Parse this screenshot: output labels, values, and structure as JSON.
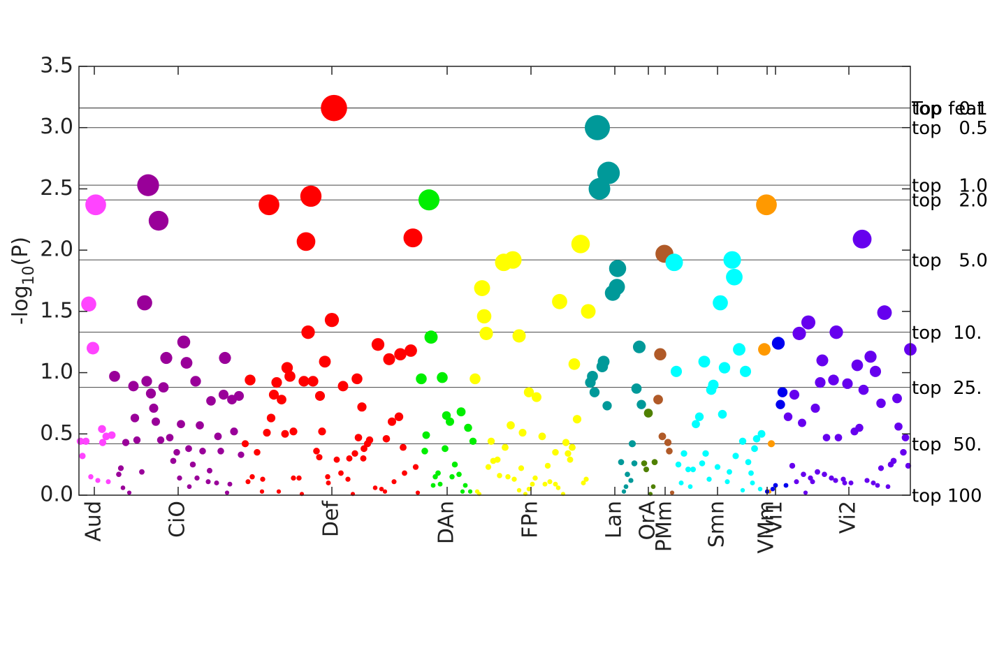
{
  "chart_data": {
    "type": "scatter",
    "ylabel": {
      "prefix": "-log",
      "sub": "10",
      "suffix": "(P)"
    },
    "ylim": [
      0,
      3.5
    ],
    "yticks": [
      {
        "value": 0,
        "label": "0.0"
      },
      {
        "value": 0.5,
        "label": "0.5"
      },
      {
        "value": 1,
        "label": "1.0"
      },
      {
        "value": 1.5,
        "label": "1.5"
      },
      {
        "value": 2,
        "label": "2.0"
      },
      {
        "value": 2.5,
        "label": "2.5"
      },
      {
        "value": 3,
        "label": "3.0"
      },
      {
        "value": 3.5,
        "label": "3.5"
      }
    ],
    "xlim": [
      113,
      1303
    ],
    "xticks": [
      {
        "value": 135,
        "label": "Aud"
      },
      {
        "value": 255,
        "label": "CiO"
      },
      {
        "value": 475,
        "label": "Def"
      },
      {
        "value": 640,
        "label": "DAn"
      },
      {
        "value": 760,
        "label": "FPn"
      },
      {
        "value": 880,
        "label": "Lan"
      },
      {
        "value": 928,
        "label": "OrA"
      },
      {
        "value": 952,
        "label": "PMm"
      },
      {
        "value": 1027,
        "label": "Smn"
      },
      {
        "value": 1098,
        "label": "VMm"
      },
      {
        "value": 1110,
        "label": "Vi1"
      },
      {
        "value": 1215,
        "label": "Vi2"
      }
    ],
    "thresholds": [
      {
        "value": 3.16,
        "label": "Top feat"
      },
      {
        "value": 3.16,
        "label": "top   0.1"
      },
      {
        "value": 3.0,
        "label": "top   0.5"
      },
      {
        "value": 2.53,
        "label": "top   1.0"
      },
      {
        "value": 2.41,
        "label": "top   2.0"
      },
      {
        "value": 1.92,
        "label": "top   5.0"
      },
      {
        "value": 1.33,
        "label": "top  10."
      },
      {
        "value": 0.88,
        "label": "top  25."
      },
      {
        "value": 0.42,
        "label": "top  50."
      },
      {
        "value": 0,
        "label": "top 100"
      }
    ],
    "series": [
      {
        "color": "#ff44ff",
        "x": [
          137,
          127,
          133,
          115,
          123,
          147,
          152,
          160,
          146,
          118,
          130,
          140,
          155
        ],
        "values": [
          2.37,
          1.56,
          1.2,
          0.44,
          0.44,
          0.43,
          0.48,
          0.49,
          0.54,
          0.32,
          0.15,
          0.12,
          0.11
        ]
      },
      {
        "color": "#990099",
        "x": [
          212,
          227,
          207,
          263,
          238,
          267,
          164,
          191,
          210,
          234,
          216,
          280,
          322,
          302,
          320,
          342,
          332,
          220,
          193,
          223,
          196,
          180,
          230,
          259,
          286,
          243,
          312,
          335,
          253,
          270,
          290,
          316,
          248,
          276,
          300,
          173,
          203,
          170,
          257,
          282,
          298,
          310,
          329,
          176,
          185,
          271,
          325,
          345
        ],
        "values": [
          2.53,
          2.24,
          1.57,
          1.25,
          1.12,
          1.08,
          0.97,
          0.89,
          0.93,
          0.88,
          0.83,
          0.93,
          1.12,
          0.77,
          0.82,
          0.81,
          0.78,
          0.71,
          0.63,
          0.6,
          0.45,
          0.43,
          0.45,
          0.58,
          0.57,
          0.47,
          0.48,
          0.52,
          0.35,
          0.38,
          0.36,
          0.36,
          0.28,
          0.25,
          0.2,
          0.22,
          0.19,
          0.17,
          0.14,
          0.14,
          0.11,
          0.1,
          0.09,
          0.06,
          0.02,
          0.07,
          0.02,
          0.33
        ]
      },
      {
        "color": "#ff0000",
        "x": [
          478,
          385,
          445,
          438,
          591,
          475,
          441,
          465,
          541,
          557,
          573,
          588,
          411,
          415,
          396,
          358,
          435,
          448,
          511,
          491,
          392,
          403,
          458,
          518,
          388,
          561,
          571,
          382,
          408,
          420,
          461,
          351,
          513,
          529,
          526,
          521,
          553,
          577,
          453,
          368,
          457,
          482,
          508,
          500,
          520,
          595,
          579,
          564,
          488,
          498,
          469,
          361,
          355,
          376,
          420,
          428,
          470,
          537,
          546,
          551,
          598,
          375,
          399,
          432,
          505
        ],
        "values": [
          3.16,
          2.37,
          2.44,
          2.07,
          2.1,
          1.43,
          1.33,
          1.09,
          1.23,
          1.11,
          1.15,
          1.18,
          1.04,
          0.97,
          0.92,
          0.94,
          0.93,
          0.93,
          0.95,
          0.89,
          0.82,
          0.78,
          0.81,
          0.72,
          0.63,
          0.6,
          0.64,
          0.51,
          0.5,
          0.52,
          0.52,
          0.42,
          0.47,
          0.45,
          0.42,
          0.38,
          0.46,
          0.39,
          0.36,
          0.35,
          0.31,
          0.29,
          0.34,
          0.3,
          0.3,
          0.23,
          0.18,
          0.11,
          0.18,
          0.13,
          0.15,
          0.15,
          0.11,
          0.13,
          0.14,
          0.14,
          0.1,
          0.06,
          0.05,
          0.03,
          0.02,
          0.03,
          0.03,
          0.01,
          0.01
        ]
      },
      {
        "color": "#00ee00",
        "x": [
          614,
          617,
          603,
          633,
          639,
          644,
          660,
          670,
          677,
          610,
          608,
          637,
          651,
          627,
          623,
          647,
          657,
          630,
          620,
          666,
          662,
          673
        ],
        "values": [
          2.41,
          1.29,
          0.95,
          0.96,
          0.65,
          0.6,
          0.68,
          0.55,
          0.44,
          0.49,
          0.36,
          0.38,
          0.25,
          0.18,
          0.15,
          0.15,
          0.17,
          0.09,
          0.08,
          0.08,
          0.03,
          0.03
        ]
      },
      {
        "color": "#ffff00",
        "x": [
          690,
          693,
          696,
          734,
          721,
          743,
          831,
          801,
          842,
          822,
          680,
          757,
          768,
          731,
          748,
          776,
          826,
          810,
          819,
          703,
          723,
          795,
          813,
          706,
          712,
          699,
          746,
          784,
          816,
          715,
          727,
          736,
          766,
          839,
          835,
          780,
          787,
          795,
          799,
          757,
          743,
          683,
          686,
          762,
          806,
          752
        ],
        "values": [
          1.69,
          1.46,
          1.32,
          1.92,
          1.9,
          1.3,
          2.05,
          1.58,
          1.5,
          1.07,
          0.95,
          0.84,
          0.8,
          0.57,
          0.51,
          0.48,
          0.62,
          0.43,
          0.39,
          0.44,
          0.39,
          0.35,
          0.34,
          0.28,
          0.29,
          0.23,
          0.22,
          0.24,
          0.29,
          0.16,
          0.15,
          0.13,
          0.14,
          0.13,
          0.1,
          0.09,
          0.11,
          0.09,
          0.06,
          0.05,
          0.04,
          0.03,
          0.01,
          0.09,
          0.01,
          0.01
        ]
      },
      {
        "color": "#009999",
        "x": [
          855,
          871,
          858,
          884,
          883,
          877,
          864,
          862,
          848,
          845,
          851,
          869,
          915,
          911,
          918,
          905,
          889,
          908,
          898,
          903,
          896,
          893
        ],
        "values": [
          3.0,
          2.63,
          2.5,
          1.85,
          1.7,
          1.65,
          1.09,
          1.05,
          0.97,
          0.92,
          0.84,
          0.73,
          1.21,
          0.87,
          0.74,
          0.42,
          0.27,
          0.26,
          0.17,
          0.12,
          0.07,
          0.03
        ]
      },
      {
        "color": "#4f8000",
        "x": [
          928,
          922,
          937,
          925,
          935,
          931
        ],
        "values": [
          0.67,
          0.26,
          0.27,
          0.21,
          0.07,
          0.01
        ]
      },
      {
        "color": "#b05a28",
        "x": [
          951,
          945,
          942,
          948,
          956,
          958,
          962
        ],
        "values": [
          1.97,
          1.15,
          0.78,
          0.48,
          0.43,
          0.36,
          0.02
        ]
      },
      {
        "color": "#00ffff",
        "x": [
          965,
          1048,
          1051,
          1031,
          1058,
          968,
          1008,
          1037,
          1067,
          1021,
          1018,
          1001,
          996,
          1034,
          1063,
          1090,
          1083,
          979,
          1010,
          1053,
          971,
          985,
          992,
          1005,
          1027,
          1044,
          1071,
          1080,
          1075,
          1015,
          1041,
          975,
          988,
          1077,
          1063,
          1088
        ],
        "values": [
          1.9,
          1.92,
          1.78,
          1.57,
          1.19,
          1.01,
          1.09,
          1.04,
          1.01,
          0.9,
          0.86,
          0.64,
          0.58,
          0.66,
          0.44,
          0.5,
          0.46,
          0.34,
          0.34,
          0.32,
          0.25,
          0.21,
          0.21,
          0.26,
          0.23,
          0.19,
          0.27,
          0.38,
          0.18,
          0.13,
          0.11,
          0.1,
          0.07,
          0.1,
          0.04,
          0.05
        ]
      },
      {
        "color": "#ff9900",
        "x": [
          1097,
          1094,
          1104,
          1101
        ],
        "values": [
          2.37,
          1.19,
          0.42,
          0.03
        ]
      },
      {
        "color": "#0000ee",
        "x": [
          1114,
          1120,
          1117,
          1110,
          1106,
          1098,
          1125
        ],
        "values": [
          1.24,
          0.84,
          0.74,
          0.08,
          0.05,
          0.03,
          0.08
        ]
      },
      {
        "color": "#6600ee",
        "x": [
          1234,
          1266,
          1157,
          1144,
          1197,
          1303,
          1177,
          1246,
          1227,
          1253,
          1137,
          1174,
          1193,
          1213,
          1236,
          1284,
          1128,
          1167,
          1148,
          1261,
          1286,
          1296,
          1230,
          1223,
          1183,
          1200,
          1293,
          1279,
          1275,
          1261,
          1300,
          1134,
          1170,
          1180,
          1150,
          1160,
          1190,
          1140,
          1163,
          1196,
          1207,
          1209,
          1218,
          1241,
          1250,
          1256,
          1271,
          1153
        ],
        "values": [
          2.09,
          1.49,
          1.41,
          1.32,
          1.33,
          1.19,
          1.1,
          1.13,
          1.06,
          1.01,
          0.82,
          0.92,
          0.94,
          0.91,
          0.86,
          0.79,
          0.64,
          0.71,
          0.59,
          0.75,
          0.56,
          0.47,
          0.55,
          0.52,
          0.47,
          0.47,
          0.35,
          0.28,
          0.25,
          0.22,
          0.24,
          0.24,
          0.19,
          0.17,
          0.17,
          0.14,
          0.14,
          0.11,
          0.11,
          0.12,
          0.13,
          0.1,
          0.1,
          0.12,
          0.1,
          0.08,
          0.07,
          0.02
        ]
      }
    ]
  }
}
